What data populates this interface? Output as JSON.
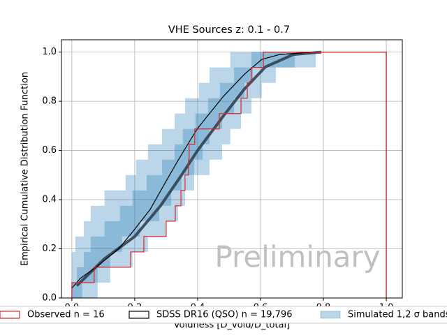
{
  "chart_data": {
    "type": "ecdf",
    "title": "VHE Sources z: 0.1 - 0.7",
    "xlabel": "Voidness [D_void/D_total]",
    "ylabel": "Empirical Cumulative Distribution Function",
    "annotation": "Preliminary",
    "xlim": [
      -0.033,
      1.051
    ],
    "ylim": [
      0,
      1.05
    ],
    "xticks": [
      {
        "value": 0,
        "label": "0.0"
      },
      {
        "value": 0.2,
        "label": "0.2"
      },
      {
        "value": 0.4,
        "label": "0.4"
      },
      {
        "value": 0.6,
        "label": "0.6"
      },
      {
        "value": 0.8,
        "label": "0.8"
      },
      {
        "value": 1.0,
        "label": "1.0"
      }
    ],
    "yticks": [
      {
        "value": 0,
        "label": "0.0"
      },
      {
        "value": 0.2,
        "label": "0.2"
      },
      {
        "value": 0.4,
        "label": "0.4"
      },
      {
        "value": 0.6,
        "label": "0.6"
      },
      {
        "value": 0.8,
        "label": "0.8"
      },
      {
        "value": 1.0,
        "label": "1.0"
      }
    ],
    "grid": true,
    "series": [
      {
        "kind": "band",
        "name": "Simulated 1,2 σ bands",
        "color": "#1f77b4",
        "levels": [
          0,
          0.0625,
          0.125,
          0.1875,
          0.25,
          0.3125,
          0.375,
          0.4375,
          0.5,
          0.5625,
          0.625,
          0.6875,
          0.75,
          0.8125,
          0.875,
          0.9375,
          1.0
        ],
        "sigma2": {
          "lower": [
            0,
            0,
            0,
            0.011,
            0.038,
            0.06,
            0.104,
            0.171,
            0.204,
            0.242,
            0.287,
            0.327,
            0.36,
            0.404,
            0.438,
            0.504
          ],
          "upper": [
            0.082,
            0.122,
            0.193,
            0.242,
            0.298,
            0.338,
            0.36,
            0.389,
            0.438,
            0.478,
            0.504,
            0.538,
            0.571,
            0.604,
            0.649,
            0.776
          ]
        },
        "sigma1": {
          "lower": [
            0,
            0.016,
            0.038,
            0.06,
            0.104,
            0.153,
            0.193,
            0.238,
            0.287,
            0.327,
            0.353,
            0.393,
            0.433,
            0.471,
            0.516,
            0.571
          ],
          "upper": [
            0.033,
            0.082,
            0.122,
            0.16,
            0.216,
            0.278,
            0.316,
            0.349,
            0.389,
            0.416,
            0.438,
            0.478,
            0.516,
            0.549,
            0.576,
            0.709
          ]
        }
      },
      {
        "kind": "line",
        "color": "#2b3a47",
        "width": 4,
        "x": [
          0.016,
          0.104,
          0.2,
          0.282,
          0.349,
          0.4,
          0.482,
          0.549,
          0.616,
          0.704,
          0.793
        ],
        "values": [
          0.05,
          0.16,
          0.25,
          0.375,
          0.5,
          0.6,
          0.74,
          0.85,
          0.94,
          0.99,
          1.0
        ]
      },
      {
        "kind": "line",
        "name": "SDSS DR16 (QSO) n = 19,796",
        "color": "#000000",
        "width": 1.2,
        "x": [
          0,
          0.027,
          0.082,
          0.149,
          0.2,
          0.249,
          0.293,
          0.338,
          0.371,
          0.4,
          0.482,
          0.549,
          0.604,
          0.66,
          0.771,
          1.0,
          1.0
        ],
        "values": [
          0.04,
          0.08,
          0.13,
          0.2,
          0.28,
          0.36,
          0.46,
          0.56,
          0.63,
          0.69,
          0.82,
          0.91,
          0.97,
          0.99,
          1.0,
          1.0,
          0
        ]
      },
      {
        "kind": "step",
        "name": "Observed n = 16",
        "color": "#d62728",
        "width": 1.2,
        "x": [
          0,
          0,
          0.071,
          0.187,
          0.229,
          0.3,
          0.329,
          0.347,
          0.36,
          0.371,
          0.373,
          0.391,
          0.469,
          0.538,
          0.558,
          0.571,
          0.609,
          1.0,
          1.0
        ],
        "values": [
          0,
          0.0625,
          0.125,
          0.1875,
          0.25,
          0.3125,
          0.375,
          0.4375,
          0.5,
          0.5625,
          0.625,
          0.6875,
          0.75,
          0.8125,
          0.875,
          0.9375,
          1.0,
          1.0,
          0
        ]
      }
    ]
  }
}
